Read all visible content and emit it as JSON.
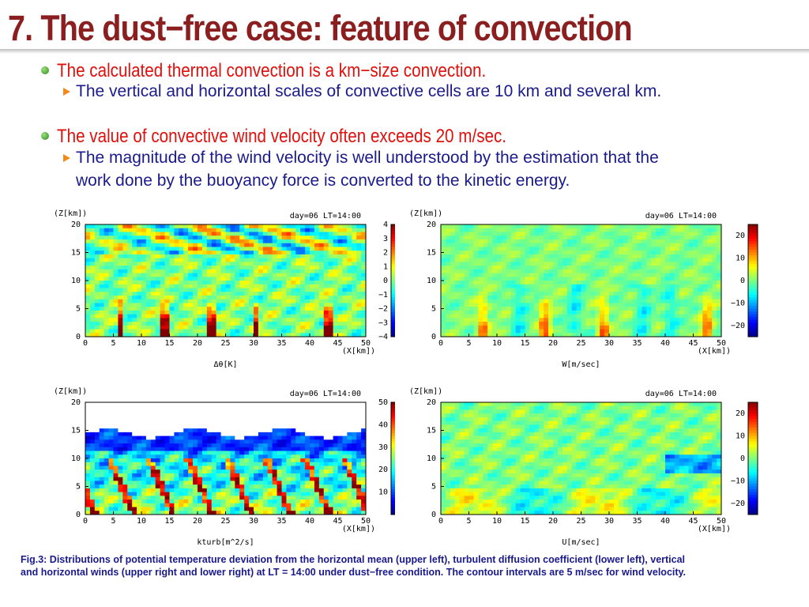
{
  "slide": {
    "title": "7. The dust−free case: feature of convection",
    "bullets": [
      {
        "text": "The calculated thermal convection is a km−size convection.",
        "sub": [
          "The vertical and horizontal scales of convective cells are 10 km and several km."
        ]
      },
      {
        "text": "The value of convective wind velocity often exceeds 20 m/sec.",
        "sub": [
          "The magnitude of the wind velocity is well understood by the estimation that the",
          "work done by the buoyancy force is converted to the kinetic energy."
        ]
      }
    ],
    "caption_lines": [
      "Fig.3: Distributions of potential temperature deviation from the horizontal mean (upper left), turbulent diffusion coefficient (lower left), vertical",
      "and horizontal winds (upper right and lower right) at LT = 14:00 under dust−free condition. The contour intervals are 5 m/sec for wind velocity."
    ]
  },
  "colors": {
    "title": "#8b1f1f",
    "bullet": "#e0100c",
    "sub": "#1a1a8c"
  },
  "chart_data": [
    {
      "type": "heatmap",
      "title": "day=06 LT=14:00",
      "xlabel": "(X[km])",
      "ylabel": "(Z[km])",
      "colorbar_label": "Δθ[K]",
      "x_ticks": [
        "0",
        "5",
        "10",
        "15",
        "20",
        "25",
        "30",
        "35",
        "40",
        "45",
        "50"
      ],
      "y_ticks": [
        "0",
        "5",
        "10",
        "15",
        "20"
      ],
      "colorbar_ticks": [
        "4",
        "3",
        "2",
        "1",
        "0",
        "−1",
        "−2",
        "−3",
        "−4"
      ],
      "xlim": [
        0,
        50
      ],
      "ylim": [
        0,
        20
      ],
      "colorbar_range": [
        -4,
        4
      ],
      "style": "theta"
    },
    {
      "type": "heatmap",
      "title": "day=06 LT=14:00",
      "xlabel": "(X[km])",
      "ylabel": "(Z[km])",
      "colorbar_label": "W[m/sec]",
      "x_ticks": [
        "0",
        "5",
        "10",
        "15",
        "20",
        "25",
        "30",
        "35",
        "40",
        "45",
        "50"
      ],
      "y_ticks": [
        "0",
        "5",
        "10",
        "15",
        "20"
      ],
      "colorbar_ticks": [
        "20",
        "10",
        "0",
        "−10",
        "−20"
      ],
      "xlim": [
        0,
        50
      ],
      "ylim": [
        0,
        20
      ],
      "colorbar_range": [
        -25,
        25
      ],
      "style": "w"
    },
    {
      "type": "heatmap",
      "title": "day=06 LT=14:00",
      "xlabel": "(X[km])",
      "ylabel": "(Z[km])",
      "colorbar_label": "kturb[m^2/s]",
      "x_ticks": [
        "0",
        "5",
        "10",
        "15",
        "20",
        "25",
        "30",
        "35",
        "40",
        "45",
        "50"
      ],
      "y_ticks": [
        "0",
        "5",
        "10",
        "15",
        "20"
      ],
      "colorbar_ticks": [
        "50",
        "40",
        "30",
        "20",
        "10"
      ],
      "xlim": [
        0,
        50
      ],
      "ylim": [
        0,
        20
      ],
      "colorbar_range": [
        0,
        50
      ],
      "style": "k"
    },
    {
      "type": "heatmap",
      "title": "day=06 LT=14:00",
      "xlabel": "(X[km])",
      "ylabel": "(Z[km])",
      "colorbar_label": "U[m/sec]",
      "x_ticks": [
        "0",
        "5",
        "10",
        "15",
        "20",
        "25",
        "30",
        "35",
        "40",
        "45",
        "50"
      ],
      "y_ticks": [
        "0",
        "5",
        "10",
        "15",
        "20"
      ],
      "colorbar_ticks": [
        "20",
        "10",
        "0",
        "−10",
        "−20"
      ],
      "xlim": [
        0,
        50
      ],
      "ylim": [
        0,
        20
      ],
      "colorbar_range": [
        -25,
        25
      ],
      "style": "u"
    }
  ]
}
